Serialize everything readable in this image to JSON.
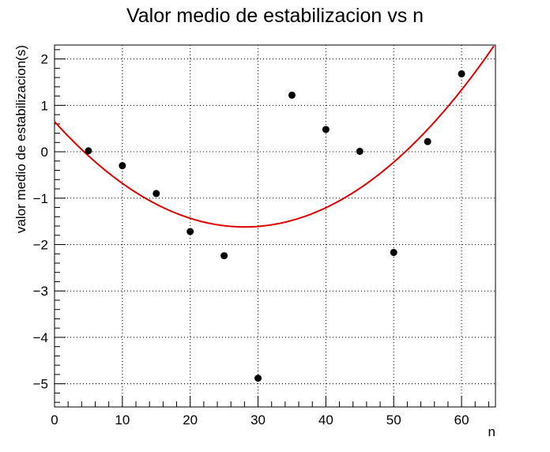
{
  "chart_data": {
    "type": "scatter",
    "title": "Valor medio de estabilizacion vs n",
    "xlabel": "n",
    "ylabel": "valor medio de estabilizacion(s)",
    "xlim": [
      0,
      65
    ],
    "ylim": [
      -5.5,
      2.3
    ],
    "x_major_ticks": [
      0,
      10,
      20,
      30,
      40,
      50,
      60
    ],
    "x_minor_step": 2,
    "y_major_ticks": [
      -5,
      -4,
      -3,
      -2,
      -1,
      0,
      1,
      2
    ],
    "y_minor_step": 0.2,
    "grid": true,
    "series": [
      {
        "points": [
          {
            "x": 5,
            "y": 0.02
          },
          {
            "x": 10,
            "y": -0.3
          },
          {
            "x": 15,
            "y": -0.9
          },
          {
            "x": 20,
            "y": -1.72
          },
          {
            "x": 25,
            "y": -2.24
          },
          {
            "x": 30,
            "y": -4.88
          },
          {
            "x": 35,
            "y": 1.22
          },
          {
            "x": 40,
            "y": 0.48
          },
          {
            "x": 45,
            "y": 0.01
          },
          {
            "x": 50,
            "y": -2.17
          },
          {
            "x": 55,
            "y": 0.22
          },
          {
            "x": 60,
            "y": 1.68
          }
        ],
        "color": "#000000"
      }
    ],
    "fit": {
      "type": "quadratic",
      "coefficients": {
        "a": 0.00289,
        "b": -0.162,
        "c": 0.65
      },
      "x_range": [
        0,
        65
      ],
      "color": "#e00000"
    }
  }
}
